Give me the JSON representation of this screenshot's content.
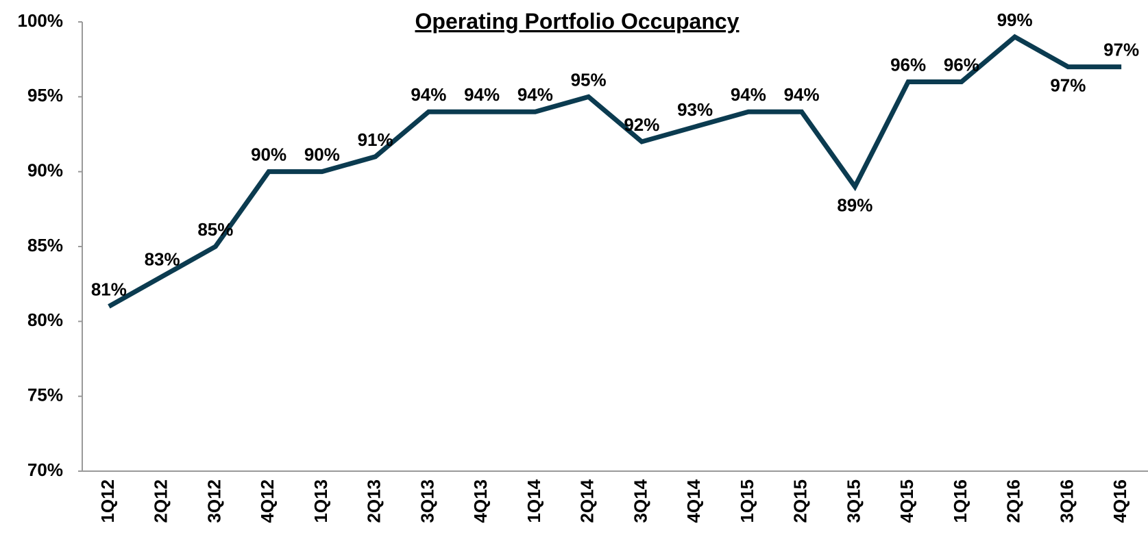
{
  "chart_data": {
    "type": "line",
    "title": "Operating Portfolio Occupancy",
    "categories": [
      "1Q12",
      "2Q12",
      "3Q12",
      "4Q12",
      "1Q13",
      "2Q13",
      "3Q13",
      "4Q13",
      "1Q14",
      "2Q14",
      "3Q14",
      "4Q14",
      "1Q15",
      "2Q15",
      "3Q15",
      "4Q15",
      "1Q16",
      "2Q16",
      "3Q16",
      "4Q16"
    ],
    "series": [
      {
        "name": "Operating Portfolio Occupancy",
        "color": "#0b3b50",
        "values": [
          81,
          83,
          85,
          90,
          90,
          91,
          94,
          94,
          94,
          95,
          92,
          93,
          94,
          94,
          89,
          96,
          96,
          99,
          97,
          97
        ],
        "value_labels": [
          "81%",
          "83%",
          "85%",
          "90%",
          "90%",
          "91%",
          "94%",
          "94%",
          "94%",
          "95%",
          "92%",
          "93%",
          "94%",
          "94%",
          "89%",
          "96%",
          "96%",
          "99%",
          "97%",
          "97%"
        ]
      }
    ],
    "ylim": [
      70,
      100
    ],
    "yticks": [
      {
        "value": 70,
        "label": "70%"
      },
      {
        "value": 75,
        "label": "75%"
      },
      {
        "value": 80,
        "label": "80%"
      },
      {
        "value": 85,
        "label": "85%"
      },
      {
        "value": 90,
        "label": "90%"
      },
      {
        "value": 95,
        "label": "95%"
      },
      {
        "value": 100,
        "label": "100%"
      }
    ],
    "grid": false
  }
}
